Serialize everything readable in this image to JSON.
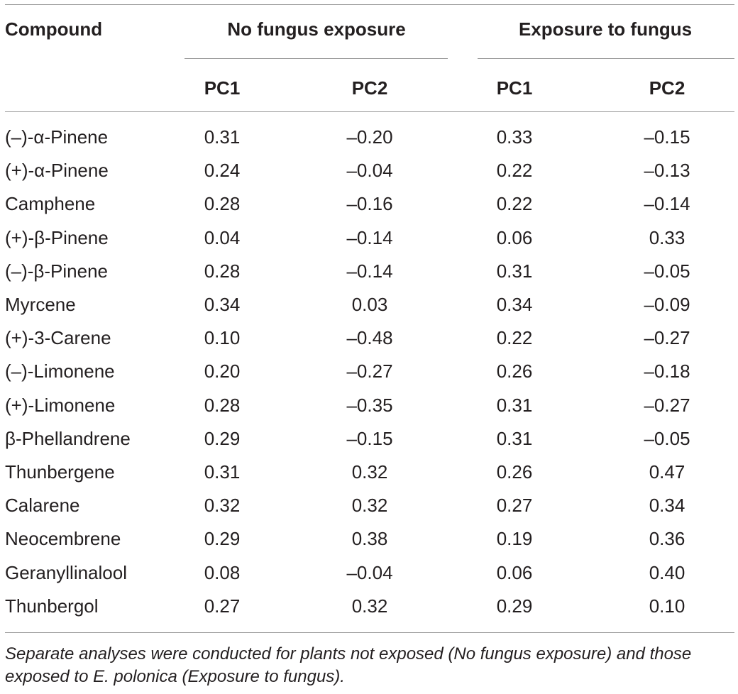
{
  "table": {
    "headers": {
      "compound": "Compound",
      "group_no_fungus": "No fungus exposure",
      "group_fungus": "Exposure to fungus",
      "subcols": [
        "PC1",
        "PC2",
        "PC1",
        "PC2"
      ]
    },
    "rows": [
      {
        "compound": "(–)-α-Pinene",
        "values": [
          "0.31",
          "–0.20",
          "0.33",
          "–0.15"
        ]
      },
      {
        "compound": "(+)-α-Pinene",
        "values": [
          "0.24",
          "–0.04",
          "0.22",
          "–0.13"
        ]
      },
      {
        "compound": "Camphene",
        "values": [
          "0.28",
          "–0.16",
          "0.22",
          "–0.14"
        ]
      },
      {
        "compound": "(+)-β-Pinene",
        "values": [
          "0.04",
          "–0.14",
          "0.06",
          "0.33"
        ]
      },
      {
        "compound": "(–)-β-Pinene",
        "values": [
          "0.28",
          "–0.14",
          "0.31",
          "–0.05"
        ]
      },
      {
        "compound": "Myrcene",
        "values": [
          "0.34",
          "0.03",
          "0.34",
          "–0.09"
        ]
      },
      {
        "compound": "(+)-3-Carene",
        "values": [
          "0.10",
          "–0.48",
          "0.22",
          "–0.27"
        ]
      },
      {
        "compound": "(–)-Limonene",
        "values": [
          "0.20",
          "–0.27",
          "0.26",
          "–0.18"
        ]
      },
      {
        "compound": "(+)-Limonene",
        "values": [
          "0.28",
          "–0.35",
          "0.31",
          "–0.27"
        ]
      },
      {
        "compound": "β-Phellandrene",
        "values": [
          "0.29",
          "–0.15",
          "0.31",
          "–0.05"
        ]
      },
      {
        "compound": "Thunbergene",
        "values": [
          "0.31",
          "0.32",
          "0.26",
          "0.47"
        ]
      },
      {
        "compound": "Calarene",
        "values": [
          "0.32",
          "0.32",
          "0.27",
          "0.34"
        ]
      },
      {
        "compound": "Neocembrene",
        "values": [
          "0.29",
          "0.38",
          "0.19",
          "0.36"
        ]
      },
      {
        "compound": "Geranyllinalool",
        "values": [
          "0.08",
          "–0.04",
          "0.06",
          "0.40"
        ]
      },
      {
        "compound": "Thunbergol",
        "values": [
          "0.27",
          "0.32",
          "0.29",
          "0.10"
        ]
      }
    ],
    "footnote": "Separate analyses were conducted for plants not exposed (No fungus exposure) and those exposed to E. polonica (Exposure to fungus)."
  }
}
